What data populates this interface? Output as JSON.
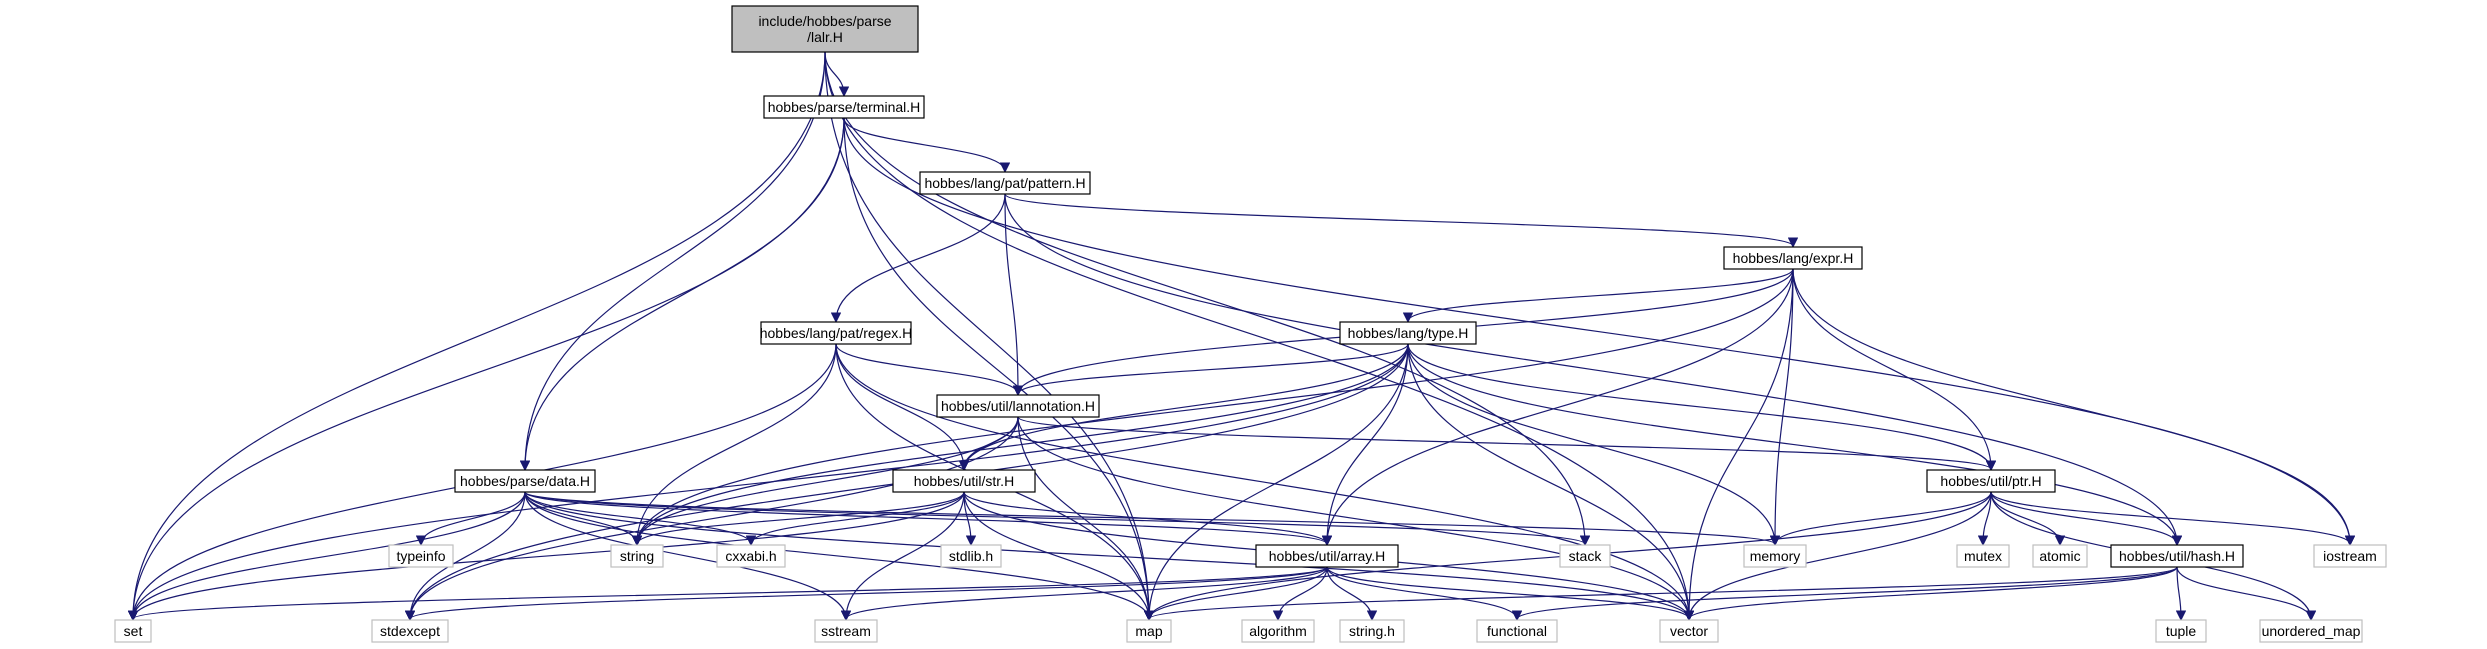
{
  "nodes": [
    {
      "id": "lalr",
      "label": "include/hobbes/parse\n/lalr.H",
      "kind": "root"
    },
    {
      "id": "terminal",
      "label": "hobbes/parse/terminal.H",
      "kind": "file"
    },
    {
      "id": "pattern",
      "label": "hobbes/lang/pat/pattern.H",
      "kind": "file"
    },
    {
      "id": "expr",
      "label": "hobbes/lang/expr.H",
      "kind": "file"
    },
    {
      "id": "regex",
      "label": "hobbes/lang/pat/regex.H",
      "kind": "file"
    },
    {
      "id": "type",
      "label": "hobbes/lang/type.H",
      "kind": "file"
    },
    {
      "id": "lannotation",
      "label": "hobbes/util/lannotation.H",
      "kind": "file"
    },
    {
      "id": "data",
      "label": "hobbes/parse/data.H",
      "kind": "file"
    },
    {
      "id": "str",
      "label": "hobbes/util/str.H",
      "kind": "file"
    },
    {
      "id": "ptr",
      "label": "hobbes/util/ptr.H",
      "kind": "file"
    },
    {
      "id": "array",
      "label": "hobbes/util/array.H",
      "kind": "file"
    },
    {
      "id": "hash",
      "label": "hobbes/util/hash.H",
      "kind": "file"
    },
    {
      "id": "set",
      "label": "set",
      "kind": "sys"
    },
    {
      "id": "stdexcept",
      "label": "stdexcept",
      "kind": "sys"
    },
    {
      "id": "sstream",
      "label": "sstream",
      "kind": "sys"
    },
    {
      "id": "map",
      "label": "map",
      "kind": "sys"
    },
    {
      "id": "algorithm",
      "label": "algorithm",
      "kind": "sys"
    },
    {
      "id": "stringh",
      "label": "string.h",
      "kind": "sys"
    },
    {
      "id": "functional",
      "label": "functional",
      "kind": "sys"
    },
    {
      "id": "vector",
      "label": "vector",
      "kind": "sys"
    },
    {
      "id": "tuple",
      "label": "tuple",
      "kind": "sys"
    },
    {
      "id": "unordered_map",
      "label": "unordered_map",
      "kind": "sys"
    },
    {
      "id": "typeinfo",
      "label": "typeinfo",
      "kind": "sys"
    },
    {
      "id": "string",
      "label": "string",
      "kind": "sys"
    },
    {
      "id": "cxxabi",
      "label": "cxxabi.h",
      "kind": "sys"
    },
    {
      "id": "stdlib",
      "label": "stdlib.h",
      "kind": "sys"
    },
    {
      "id": "stack",
      "label": "stack",
      "kind": "sys"
    },
    {
      "id": "memory",
      "label": "memory",
      "kind": "sys"
    },
    {
      "id": "mutex",
      "label": "mutex",
      "kind": "sys"
    },
    {
      "id": "atomic",
      "label": "atomic",
      "kind": "sys"
    },
    {
      "id": "iostream",
      "label": "iostream",
      "kind": "sys"
    }
  ],
  "edges": [
    [
      "lalr",
      "terminal"
    ],
    [
      "lalr",
      "set"
    ],
    [
      "lalr",
      "data"
    ],
    [
      "lalr",
      "map"
    ],
    [
      "lalr",
      "stack"
    ],
    [
      "lalr",
      "vector"
    ],
    [
      "terminal",
      "pattern"
    ],
    [
      "terminal",
      "data"
    ],
    [
      "terminal",
      "set"
    ],
    [
      "terminal",
      "map"
    ],
    [
      "terminal",
      "iostream"
    ],
    [
      "pattern",
      "expr"
    ],
    [
      "pattern",
      "regex"
    ],
    [
      "pattern",
      "lannotation"
    ],
    [
      "pattern",
      "hash"
    ],
    [
      "expr",
      "type"
    ],
    [
      "expr",
      "lannotation"
    ],
    [
      "expr",
      "ptr"
    ],
    [
      "expr",
      "array"
    ],
    [
      "expr",
      "string"
    ],
    [
      "expr",
      "memory"
    ],
    [
      "expr",
      "vector"
    ],
    [
      "expr",
      "iostream"
    ],
    [
      "regex",
      "lannotation"
    ],
    [
      "regex",
      "str"
    ],
    [
      "regex",
      "set"
    ],
    [
      "regex",
      "string"
    ],
    [
      "regex",
      "map"
    ],
    [
      "regex",
      "vector"
    ],
    [
      "type",
      "lannotation"
    ],
    [
      "type",
      "str"
    ],
    [
      "type",
      "array"
    ],
    [
      "type",
      "ptr"
    ],
    [
      "type",
      "hash"
    ],
    [
      "type",
      "set"
    ],
    [
      "type",
      "string"
    ],
    [
      "type",
      "stdexcept"
    ],
    [
      "type",
      "map"
    ],
    [
      "type",
      "vector"
    ],
    [
      "type",
      "memory"
    ],
    [
      "lannotation",
      "str"
    ],
    [
      "lannotation",
      "ptr"
    ],
    [
      "lannotation",
      "string"
    ],
    [
      "lannotation",
      "stdexcept"
    ],
    [
      "lannotation",
      "map"
    ],
    [
      "lannotation",
      "vector"
    ],
    [
      "data",
      "array"
    ],
    [
      "data",
      "set"
    ],
    [
      "data",
      "stdexcept"
    ],
    [
      "data",
      "typeinfo"
    ],
    [
      "data",
      "string"
    ],
    [
      "data",
      "cxxabi"
    ],
    [
      "data",
      "sstream"
    ],
    [
      "data",
      "map"
    ],
    [
      "data",
      "vector"
    ],
    [
      "data",
      "stack"
    ],
    [
      "data",
      "memory"
    ],
    [
      "str",
      "array"
    ],
    [
      "str",
      "string"
    ],
    [
      "str",
      "cxxabi"
    ],
    [
      "str",
      "stdlib"
    ],
    [
      "str",
      "sstream"
    ],
    [
      "str",
      "map"
    ],
    [
      "str",
      "vector"
    ],
    [
      "str",
      "set"
    ],
    [
      "ptr",
      "hash"
    ],
    [
      "ptr",
      "memory"
    ],
    [
      "ptr",
      "mutex"
    ],
    [
      "ptr",
      "atomic"
    ],
    [
      "ptr",
      "iostream"
    ],
    [
      "ptr",
      "unordered_map"
    ],
    [
      "ptr",
      "map"
    ],
    [
      "ptr",
      "vector"
    ],
    [
      "array",
      "set"
    ],
    [
      "array",
      "stdexcept"
    ],
    [
      "array",
      "sstream"
    ],
    [
      "array",
      "map"
    ],
    [
      "array",
      "algorithm"
    ],
    [
      "array",
      "stringh"
    ],
    [
      "array",
      "functional"
    ],
    [
      "array",
      "vector"
    ],
    [
      "hash",
      "map"
    ],
    [
      "hash",
      "functional"
    ],
    [
      "hash",
      "vector"
    ],
    [
      "hash",
      "tuple"
    ],
    [
      "hash",
      "unordered_map"
    ]
  ]
}
